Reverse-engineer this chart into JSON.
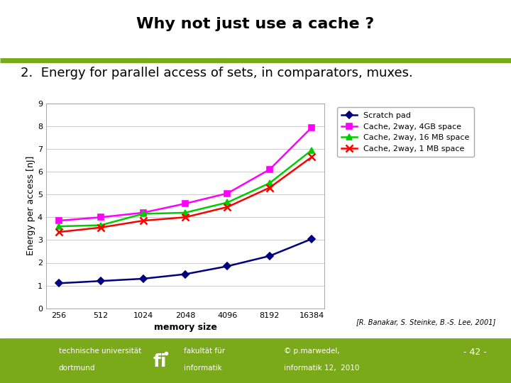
{
  "title": "Why not just use a cache ?",
  "subtitle": "2.  Energy for parallel access of sets, in comparators, muxes.",
  "xlabel": "memory size",
  "ylabel": "Energy per access [nJ]",
  "x_labels": [
    "256",
    "512",
    "1024",
    "2048",
    "4096",
    "8192",
    "16384"
  ],
  "x_values": [
    256,
    512,
    1024,
    2048,
    4096,
    8192,
    16384
  ],
  "ylim": [
    0,
    9
  ],
  "yticks": [
    0,
    1,
    2,
    3,
    4,
    5,
    6,
    7,
    8,
    9
  ],
  "series": [
    {
      "label": "Scratch pad",
      "color": "#000080",
      "marker": "D",
      "markersize": 5,
      "data": [
        1.1,
        1.2,
        1.3,
        1.5,
        1.85,
        2.3,
        3.05
      ]
    },
    {
      "label": "Cache, 2way, 4GB space",
      "color": "#FF00FF",
      "marker": "s",
      "markersize": 6,
      "data": [
        3.85,
        4.0,
        4.2,
        4.6,
        5.05,
        6.1,
        7.95
      ]
    },
    {
      "label": "Cache, 2way, 16 MB space",
      "color": "#00CC00",
      "marker": "^",
      "markersize": 6,
      "data": [
        3.6,
        3.65,
        4.15,
        4.2,
        4.65,
        5.5,
        6.95
      ]
    },
    {
      "label": "Cache, 2way, 1 MB space",
      "color": "#FF0000",
      "marker": "x",
      "markersize": 7,
      "data": [
        3.35,
        3.55,
        3.85,
        4.0,
        4.45,
        5.3,
        6.65
      ]
    }
  ],
  "citation": "[R. Banakar, S. Steinke, B.-S. Lee, 2001]",
  "background_color": "#ffffff",
  "plot_bg_color": "#ffffff",
  "grid_color": "#cccccc",
  "title_fontsize": 16,
  "subtitle_fontsize": 13,
  "axis_label_fontsize": 9,
  "tick_fontsize": 8,
  "legend_fontsize": 8,
  "footer_left1": "technische universität",
  "footer_left2": "dortmund",
  "footer_mid1": "fakultät für",
  "footer_mid2": "informatik",
  "footer_right1": "© p.marwedel,",
  "footer_right2": "informatik 12,  2010",
  "footer_page": "- 42 -",
  "olive_color": "#7aaa1a",
  "header_line_color": "#7aaa1a"
}
